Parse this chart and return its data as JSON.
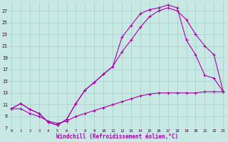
{
  "xlabel": "Windchill (Refroidissement éolien,°C)",
  "ylim": [
    7,
    28.5
  ],
  "xlim": [
    -0.3,
    23.3
  ],
  "ytick_vals": [
    7,
    9,
    11,
    13,
    15,
    17,
    19,
    21,
    23,
    25,
    27
  ],
  "xtick_vals": [
    0,
    1,
    2,
    3,
    4,
    5,
    6,
    7,
    8,
    9,
    10,
    11,
    12,
    13,
    14,
    15,
    16,
    17,
    18,
    19,
    20,
    21,
    22,
    23
  ],
  "bg_color": "#c8e8e4",
  "grid_color": "#a8d4d0",
  "line_color": "#aa00aa",
  "line1_y": [
    10.3,
    11.2,
    10.2,
    9.5,
    8.0,
    7.5,
    8.5,
    11.2,
    13.5,
    14.8,
    16.2,
    17.5,
    20.0,
    22.0,
    24.2,
    26.0,
    27.0,
    27.5,
    27.0,
    25.5,
    23.0,
    21.0,
    19.5,
    13.2
  ],
  "line2_y": [
    10.3,
    11.2,
    10.2,
    9.5,
    8.0,
    7.5,
    8.5,
    11.2,
    13.5,
    14.8,
    16.2,
    17.5,
    22.5,
    24.5,
    26.5,
    27.2,
    27.5,
    28.0,
    27.5,
    22.0,
    19.5,
    16.0,
    15.5,
    13.2
  ],
  "line3_y": [
    10.3,
    10.3,
    9.5,
    9.0,
    8.2,
    7.8,
    8.2,
    9.0,
    9.5,
    10.0,
    10.5,
    11.0,
    11.5,
    12.0,
    12.5,
    12.8,
    13.0,
    13.0,
    13.0,
    13.0,
    13.0,
    13.2,
    13.2,
    13.2
  ]
}
